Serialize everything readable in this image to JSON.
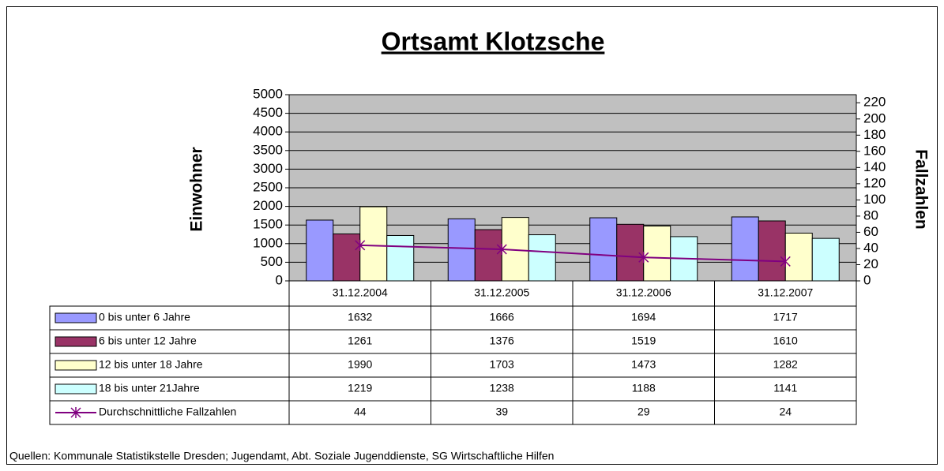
{
  "chart_data": {
    "type": "bar",
    "title": "Ortsamt Klotzsche",
    "y_label": "Einwohner",
    "y2_label": "Fallzahlen",
    "source": "Quellen: Kommunale Statistikstelle Dresden; Jugendamt, Abt. Soziale Jugenddienste, SG Wirtschaftliche Hilfen",
    "categories": [
      "31.12.2004",
      "31.12.2005",
      "31.12.2006",
      "31.12.2007"
    ],
    "series": [
      {
        "name": "0 bis unter 6 Jahre",
        "color": "#9999ff",
        "values": [
          1632,
          1666,
          1694,
          1717
        ]
      },
      {
        "name": "6 bis unter 12 Jahre",
        "color": "#993366",
        "values": [
          1261,
          1376,
          1519,
          1610
        ]
      },
      {
        "name": "12 bis unter 18 Jahre",
        "color": "#ffffcc",
        "values": [
          1990,
          1703,
          1473,
          1282
        ]
      },
      {
        "name": "18 bis unter 21Jahre",
        "color": "#ccffff",
        "values": [
          1219,
          1238,
          1188,
          1141
        ]
      },
      {
        "name": "Durchschnittliche Fallzahlen",
        "color": "#800080",
        "values": [
          44,
          39,
          29,
          24
        ],
        "axis": "y2",
        "type": "line"
      }
    ],
    "ylim": [
      0,
      5000
    ],
    "yticks": [
      0,
      500,
      1000,
      1500,
      2000,
      2500,
      3000,
      3500,
      4000,
      4500,
      5000
    ],
    "y2lim": [
      0,
      230
    ],
    "y2ticks": [
      0,
      20,
      40,
      60,
      80,
      100,
      120,
      140,
      160,
      180,
      200,
      220
    ],
    "grid": true,
    "plot_background": "#c0c0c0"
  }
}
